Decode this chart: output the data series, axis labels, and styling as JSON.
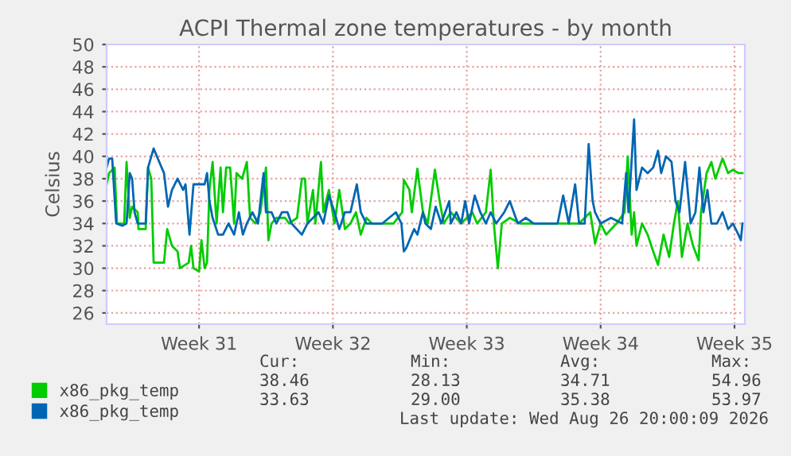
{
  "chart_data": {
    "type": "line",
    "title": "ACPI Thermal zone temperatures - by month",
    "ylabel": "Celsius",
    "xlim": [
      "2026-07-22T04:00",
      "2026-08-24T13:00"
    ],
    "xticks": [
      {
        "value": "2026-07-27",
        "label": "Week 31"
      },
      {
        "value": "2026-08-03",
        "label": "Week 32"
      },
      {
        "value": "2026-08-10",
        "label": "Week 33"
      },
      {
        "value": "2026-08-17",
        "label": "Week 34"
      },
      {
        "value": "2026-08-24",
        "label": "Week 35"
      }
    ],
    "ylim": [
      25,
      50
    ],
    "yticks": [
      26,
      28,
      30,
      32,
      34,
      36,
      38,
      40,
      42,
      44,
      46,
      48,
      50
    ],
    "grid": true,
    "legend": "bottom",
    "marker": "none",
    "line_style": "solid",
    "series": [
      {
        "name": "x86_pkg_temp",
        "color": "#00cc00",
        "x": [
          "2026-07-22T04:00",
          "2026-07-22T07:00",
          "2026-07-22T14:00",
          "2026-07-22T17:00",
          "2026-07-23T02:00",
          "2026-07-23T05:00",
          "2026-07-23T09:00",
          "2026-07-23T12:00",
          "2026-07-23T19:00",
          "2026-07-23T20:00",
          "2026-07-24T05:00",
          "2026-07-24T08:00",
          "2026-07-24T12:00",
          "2026-07-24T15:00",
          "2026-07-24T22:00",
          "2026-07-25T04:00",
          "2026-07-25T08:00",
          "2026-07-25T14:00",
          "2026-07-25T21:00",
          "2026-07-26T00:00",
          "2026-07-26T11:00",
          "2026-07-26T14:00",
          "2026-07-26T17:00",
          "2026-07-27T00:00",
          "2026-07-27T03:00",
          "2026-07-27T07:00",
          "2026-07-27T10:00",
          "2026-07-27T13:00",
          "2026-07-27T17:00",
          "2026-07-27T22:00",
          "2026-07-28T03:00",
          "2026-07-28T06:00",
          "2026-07-28T10:00",
          "2026-07-28T15:00",
          "2026-07-28T20:00",
          "2026-07-28T23:00",
          "2026-07-29T06:00",
          "2026-07-29T12:00",
          "2026-07-29T16:00",
          "2026-07-29T23:00",
          "2026-07-30T05:00",
          "2026-07-30T12:00",
          "2026-07-30T15:00",
          "2026-07-30T19:00",
          "2026-07-31T01:00",
          "2026-07-31T12:00",
          "2026-07-31T17:00",
          "2026-08-01T03:00",
          "2026-08-01T09:00",
          "2026-08-01T13:00",
          "2026-08-01T16:00",
          "2026-08-01T23:00",
          "2026-08-02T02:00",
          "2026-08-02T09:00",
          "2026-08-02T12:00",
          "2026-08-02T19:00",
          "2026-08-03T02:00",
          "2026-08-03T08:00",
          "2026-08-03T15:00",
          "2026-08-03T22:00",
          "2026-08-04T05:00",
          "2026-08-04T11:00",
          "2026-08-04T18:00",
          "2026-08-05T01:00",
          "2026-08-05T14:00",
          "2026-08-06T04:00",
          "2026-08-06T15:00",
          "2026-08-06T17:00",
          "2026-08-07T00:00",
          "2026-08-07T03:00",
          "2026-08-07T10:00",
          "2026-08-07T17:00",
          "2026-08-07T23:00",
          "2026-08-08T08:00",
          "2026-08-08T14:00",
          "2026-08-08T19:00",
          "2026-08-09T04:00",
          "2026-08-09T17:00",
          "2026-08-10T07:00",
          "2026-08-10T13:00",
          "2026-08-11T00:00",
          "2026-08-11T06:00",
          "2026-08-11T10:00",
          "2026-08-11T15:00",
          "2026-08-11T20:00",
          "2026-08-12T06:00",
          "2026-08-12T19:00",
          "2026-08-13T09:00",
          "2026-08-13T22:00",
          "2026-08-14T12:00",
          "2026-08-15T04:00",
          "2026-08-15T21:00",
          "2026-08-16T11:00",
          "2026-08-16T17:00",
          "2026-08-17T00:00",
          "2026-08-17T07:00",
          "2026-08-17T20:00",
          "2026-08-18T06:00",
          "2026-08-18T10:00",
          "2026-08-18T15:00",
          "2026-08-18T18:00",
          "2026-08-18T21:00",
          "2026-08-19T04:00",
          "2026-08-19T11:00",
          "2026-08-19T18:00",
          "2026-08-20T00:00",
          "2026-08-20T07:00",
          "2026-08-20T14:00",
          "2026-08-20T20:00",
          "2026-08-21T01:00",
          "2026-08-21T06:00",
          "2026-08-21T13:00",
          "2026-08-21T20:00",
          "2026-08-22T03:00",
          "2026-08-22T06:00",
          "2026-08-22T13:00",
          "2026-08-22T19:00",
          "2026-08-23T00:00",
          "2026-08-23T09:00",
          "2026-08-23T16:00",
          "2026-08-23T22:00",
          "2026-08-24T05:00",
          "2026-08-24T10:00"
        ],
        "values": [
          37.5,
          38.5,
          39,
          34,
          34,
          39.5,
          34.5,
          35.5,
          35,
          33.5,
          33.5,
          39,
          38,
          30.5,
          30.5,
          30.5,
          33.5,
          32,
          31.5,
          30,
          30.5,
          32,
          30,
          29.7,
          32.5,
          30,
          30.5,
          37,
          39.5,
          34,
          39,
          35,
          39,
          39,
          34,
          38.5,
          38,
          39.5,
          34.5,
          34,
          35,
          39,
          32.5,
          34,
          34.5,
          34.5,
          34,
          34.5,
          38,
          38,
          34,
          37,
          34,
          39.5,
          35,
          37,
          34,
          37,
          33.5,
          34,
          35,
          33,
          34.5,
          34,
          34,
          34,
          35,
          37.9,
          37,
          35,
          38.9,
          35,
          34,
          38.8,
          36,
          34,
          35,
          34,
          35,
          34,
          35,
          38.8,
          34,
          30,
          34,
          34.5,
          34,
          34,
          34,
          34,
          34,
          34,
          35,
          32.2,
          34,
          33,
          34,
          35,
          40,
          33,
          35,
          32,
          34,
          33,
          31.5,
          30.3,
          33,
          31,
          34,
          36,
          31,
          34,
          32,
          30.7,
          35,
          38.5,
          39.5,
          38,
          39.8,
          38.5,
          38.8,
          38.5,
          38.5
        ]
      },
      {
        "name": "x86_pkg_temp",
        "color": "#0066b3",
        "x": [
          "2026-07-22T04:00",
          "2026-07-22T07:00",
          "2026-07-22T11:00",
          "2026-07-22T16:00",
          "2026-07-23T00:00",
          "2026-07-23T05:00",
          "2026-07-23T09:00",
          "2026-07-23T12:00",
          "2026-07-23T15:00",
          "2026-07-23T19:00",
          "2026-07-24T05:00",
          "2026-07-24T08:00",
          "2026-07-24T15:00",
          "2026-07-24T22:00",
          "2026-07-25T04:00",
          "2026-07-25T09:00",
          "2026-07-25T14:00",
          "2026-07-25T21:00",
          "2026-07-26T04:00",
          "2026-07-26T07:00",
          "2026-07-26T12:00",
          "2026-07-26T17:00",
          "2026-07-27T07:00",
          "2026-07-27T10:00",
          "2026-07-27T13:00",
          "2026-07-27T17:00",
          "2026-07-28T00:00",
          "2026-07-28T06:00",
          "2026-07-28T13:00",
          "2026-07-28T20:00",
          "2026-07-29T02:00",
          "2026-07-29T07:00",
          "2026-07-29T12:00",
          "2026-07-29T19:00",
          "2026-07-30T02:00",
          "2026-07-30T09:00",
          "2026-07-30T12:00",
          "2026-07-30T19:00",
          "2026-07-31T01:00",
          "2026-07-31T08:00",
          "2026-07-31T15:00",
          "2026-07-31T20:00",
          "2026-08-01T09:00",
          "2026-08-01T16:00",
          "2026-08-02T06:00",
          "2026-08-02T12:00",
          "2026-08-02T19:00",
          "2026-08-03T02:00",
          "2026-08-03T08:00",
          "2026-08-03T15:00",
          "2026-08-03T22:00",
          "2026-08-04T06:00",
          "2026-08-04T11:00",
          "2026-08-04T18:00",
          "2026-08-05T01:00",
          "2026-08-05T14:00",
          "2026-08-06T07:00",
          "2026-08-06T14:00",
          "2026-08-06T17:00",
          "2026-08-06T20:00",
          "2026-08-07T03:00",
          "2026-08-07T06:00",
          "2026-08-07T10:00",
          "2026-08-07T17:00",
          "2026-08-07T20:00",
          "2026-08-08T03:00",
          "2026-08-08T09:00",
          "2026-08-08T16:00",
          "2026-08-09T02:00",
          "2026-08-09T04:00",
          "2026-08-09T11:00",
          "2026-08-09T17:00",
          "2026-08-09T22:00",
          "2026-08-10T03:00",
          "2026-08-10T10:00",
          "2026-08-10T17:00",
          "2026-08-11T00:00",
          "2026-08-11T06:00",
          "2026-08-11T13:00",
          "2026-08-11T23:00",
          "2026-08-12T06:00",
          "2026-08-12T16:00",
          "2026-08-13T02:00",
          "2026-08-13T12:00",
          "2026-08-13T22:00",
          "2026-08-14T18:00",
          "2026-08-15T01:00",
          "2026-08-15T08:00",
          "2026-08-15T16:00",
          "2026-08-15T21:00",
          "2026-08-16T04:00",
          "2026-08-16T09:00",
          "2026-08-16T14:00",
          "2026-08-16T17:00",
          "2026-08-17T00:00",
          "2026-08-17T13:00",
          "2026-08-18T03:00",
          "2026-08-18T08:00",
          "2026-08-18T11:00",
          "2026-08-18T18:00",
          "2026-08-18T21:00",
          "2026-08-19T04:00",
          "2026-08-19T11:00",
          "2026-08-19T18:00",
          "2026-08-20T00:00",
          "2026-08-20T04:00",
          "2026-08-20T10:00",
          "2026-08-20T17:00",
          "2026-08-20T22:00",
          "2026-08-21T03:00",
          "2026-08-21T10:00",
          "2026-08-21T17:00",
          "2026-08-21T23:00",
          "2026-08-22T04:00",
          "2026-08-22T09:00",
          "2026-08-22T14:00",
          "2026-08-22T19:00",
          "2026-08-23T02:00",
          "2026-08-23T09:00",
          "2026-08-23T16:00",
          "2026-08-23T22:00",
          "2026-08-24T05:00",
          "2026-08-24T08:00",
          "2026-08-24T10:00"
        ],
        "values": [
          39,
          39.8,
          39.8,
          34,
          33.8,
          34,
          38.5,
          38,
          35,
          34,
          34,
          39,
          40.7,
          39.5,
          38.5,
          35.5,
          37,
          38,
          37,
          37.5,
          33,
          37.5,
          37.5,
          38.5,
          36,
          34.5,
          33,
          33,
          34,
          33,
          35,
          33,
          34,
          35,
          34,
          38.5,
          35,
          35,
          34,
          35,
          35,
          34,
          33,
          34,
          35,
          34,
          36.5,
          35,
          33.5,
          35,
          35,
          37.5,
          35,
          34,
          34,
          34,
          35,
          34,
          31.5,
          31.8,
          33,
          33.5,
          33,
          35,
          34,
          33.5,
          35.5,
          34,
          36,
          34,
          35,
          34,
          36,
          34,
          36.5,
          35,
          34,
          35,
          34,
          35,
          36,
          34,
          34.5,
          34,
          34,
          34,
          36.5,
          34,
          37.5,
          34,
          34,
          41.1,
          36,
          35,
          34,
          34.5,
          34,
          38.5,
          35,
          43.3,
          37,
          39,
          38.5,
          39,
          40.5,
          38.5,
          40,
          39.5,
          36,
          35,
          39.5,
          34,
          35,
          39,
          35,
          37,
          34,
          34,
          35,
          33.5,
          34,
          33,
          32.5,
          34
        ]
      }
    ],
    "annotations": [
      "Cur:",
      "Min:",
      "Avg:",
      "Max:",
      "38.46",
      "28.13",
      "34.71",
      "54.96",
      "33.63",
      "29.00",
      "35.38",
      "53.97",
      "Last update: Wed Aug 26 20:00:09 2026"
    ]
  }
}
